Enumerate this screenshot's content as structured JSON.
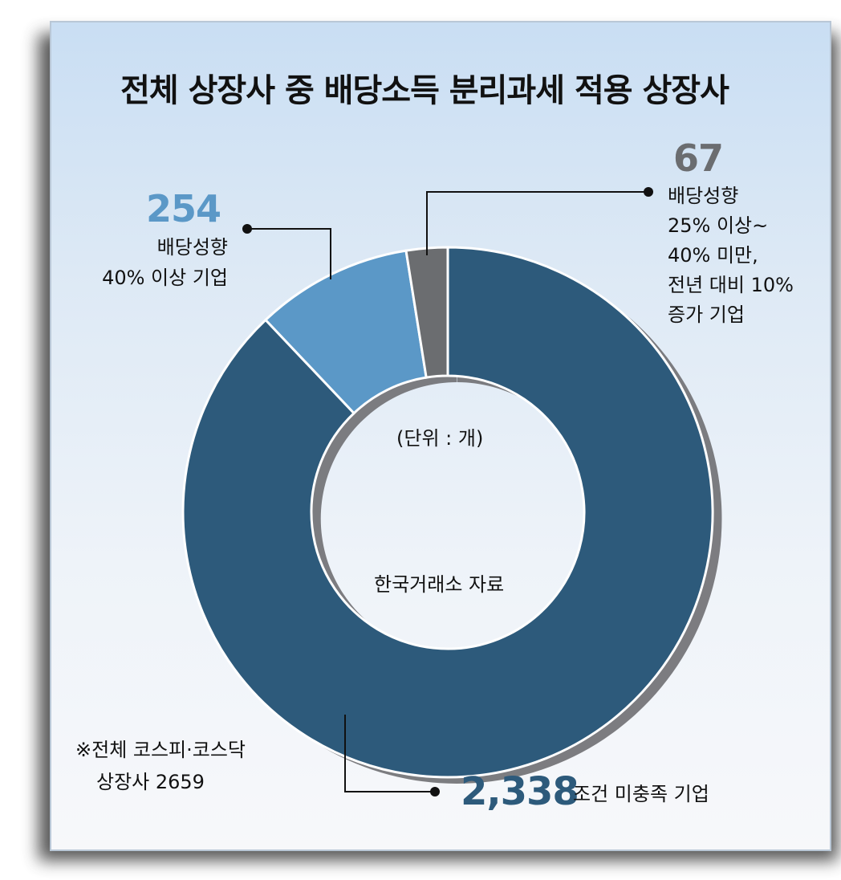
{
  "title": "전체 상장사 중 배당소득 분리과세 적용 상장사",
  "unit_label": "(단위 : 개)",
  "source_label": "한국거래소 자료",
  "footnote": [
    "※전체 코스피·코스닥",
    "상장사 2659"
  ],
  "colors": {
    "dark_slice": "#2d5a7b",
    "light_slice": "#5b98c7",
    "gray_slice": "#6b6d70",
    "light_value_text": "#5b98c7",
    "gray_value_text": "#6b6d70",
    "dark_value_text": "#2d5a7b"
  },
  "chart_data": {
    "type": "pie",
    "style": "donut",
    "slices": [
      {
        "key": "dark",
        "value": 2338,
        "value_label": "2,338",
        "description": [
          "조건 미충족 기업"
        ]
      },
      {
        "key": "light",
        "value": 254,
        "value_label": "254",
        "description": [
          "배당성향",
          "40% 이상 기업"
        ]
      },
      {
        "key": "gray",
        "value": 67,
        "value_label": "67",
        "description": [
          "배당성향",
          "25% 이상~",
          "40% 미만,",
          "전년 대비 10%",
          "증가 기업"
        ]
      }
    ]
  }
}
